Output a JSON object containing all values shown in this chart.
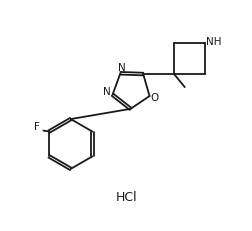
{
  "background_color": "#ffffff",
  "line_color": "#1a1a1a",
  "text_color": "#1a1a1a",
  "hcl_label": "HCl",
  "label_F": "F",
  "label_N": "N",
  "label_NH": "NH",
  "label_O": "O",
  "figsize": [
    2.53,
    2.31
  ],
  "dpi": 100,
  "lw": 1.3
}
